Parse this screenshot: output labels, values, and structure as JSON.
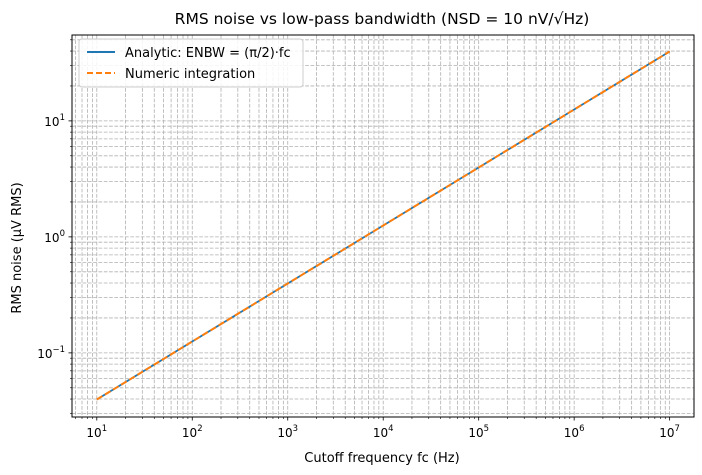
{
  "chart_data": {
    "type": "line",
    "title": "RMS noise vs low-pass bandwidth (NSD = 10 nV/√Hz)",
    "xlabel": "Cutoff frequency fc (Hz)",
    "ylabel": "RMS noise (μV RMS)",
    "xscale": "log",
    "yscale": "log",
    "xlim": [
      5.5,
      18000000
    ],
    "ylim": [
      0.028,
      55
    ],
    "grid": "major and minor, dashed",
    "legend_position": "upper-left",
    "x_ticks": [
      {
        "value": 10,
        "base": "10",
        "exp": "1"
      },
      {
        "value": 100,
        "base": "10",
        "exp": "2"
      },
      {
        "value": 1000,
        "base": "10",
        "exp": "3"
      },
      {
        "value": 10000,
        "base": "10",
        "exp": "4"
      },
      {
        "value": 100000,
        "base": "10",
        "exp": "5"
      },
      {
        "value": 1000000,
        "base": "10",
        "exp": "6"
      },
      {
        "value": 10000000,
        "base": "10",
        "exp": "7"
      }
    ],
    "y_ticks": [
      {
        "value": 0.1,
        "base": "10",
        "exp": "−1"
      },
      {
        "value": 1,
        "base": "10",
        "exp": "0"
      },
      {
        "value": 10,
        "base": "10",
        "exp": "1"
      }
    ],
    "series": [
      {
        "name": "Analytic: ENBW = (π/2)·fc",
        "color": "#1f77b4",
        "style": "solid",
        "x": [
          10,
          100,
          1000,
          10000,
          100000,
          1000000,
          10000000
        ],
        "y": [
          0.0396,
          0.1253,
          0.3963,
          1.253,
          3.963,
          12.53,
          39.63
        ]
      },
      {
        "name": "Numeric integration",
        "color": "#ff7f0e",
        "style": "dashed",
        "x": [
          10,
          100,
          1000,
          10000,
          100000,
          1000000,
          10000000
        ],
        "y": [
          0.0396,
          0.1253,
          0.3963,
          1.253,
          3.963,
          12.53,
          39.63
        ]
      }
    ]
  }
}
